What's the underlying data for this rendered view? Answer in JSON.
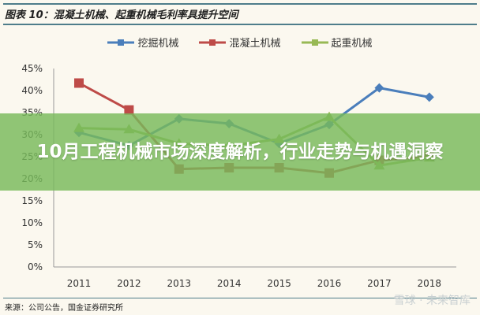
{
  "header": {
    "title": "图表 10：混凝土机械、起重机械毛利率具提升空间"
  },
  "banner": {
    "text": "10月工程机械市场深度解析，行业走势与机遇洞察"
  },
  "footer": {
    "source": "来源：公司公告，国金证券研究所",
    "watermark": "雪球 · 未来智库"
  },
  "chart_data": {
    "type": "line",
    "title": "图表 10：混凝土机械、起重机械毛利率具提升空间",
    "categories": [
      "2011",
      "2012",
      "2013",
      "2014",
      "2015",
      "2016",
      "2017",
      "2018"
    ],
    "ylim": [
      0,
      45
    ],
    "yticks": [
      "0%",
      "5%",
      "10%",
      "15%",
      "20%",
      "25%",
      "30%",
      "35%",
      "40%",
      "45%"
    ],
    "legend": "top",
    "series": [
      {
        "name": "挖掘机械",
        "color": "#4a7ebb",
        "marker": "diamond",
        "values": [
          30.5,
          27.5,
          33.6,
          32.5,
          28.0,
          32.3,
          40.6,
          38.5
        ]
      },
      {
        "name": "混凝土机械",
        "color": "#be4b48",
        "marker": "square",
        "values": [
          41.7,
          35.6,
          22.2,
          22.5,
          22.5,
          21.3,
          24.2,
          25.0
        ]
      },
      {
        "name": "起重机械",
        "color": "#98b954",
        "marker": "triangle",
        "values": [
          31.5,
          31.2,
          28.0,
          27.5,
          29.0,
          34.0,
          23.0,
          24.8
        ]
      }
    ]
  }
}
